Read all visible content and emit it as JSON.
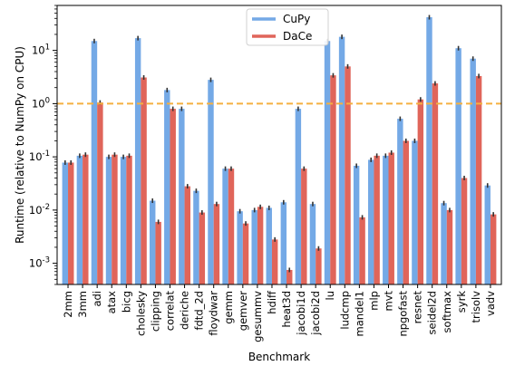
{
  "chart_data": {
    "type": "bar",
    "xlabel": "Benchmark",
    "ylabel": "Runtime (relative to NumPy on CPU)",
    "yscale": "log",
    "ylim": [
      0.0004,
      70
    ],
    "yticks": [
      0.001,
      0.01,
      0.1,
      1,
      10
    ],
    "ytick_labels": [
      {
        "base": "10",
        "exp": "-3"
      },
      {
        "base": "10",
        "exp": "-2"
      },
      {
        "base": "10",
        "exp": "-1"
      },
      {
        "base": "10",
        "exp": "0"
      },
      {
        "base": "10",
        "exp": "1"
      }
    ],
    "reference_line": {
      "y": 1,
      "color": "#f5b041",
      "style": "dashed"
    },
    "legend_position": "top-center",
    "categories": [
      "2mm",
      "3mm",
      "adi",
      "atax",
      "bicg",
      "cholesky",
      "clipping",
      "correlat",
      "deriche",
      "fdtd_2d",
      "floydwar",
      "gemm",
      "gemver",
      "gesummv",
      "hdiff",
      "heat3d",
      "jacobi1d",
      "jacobi2d",
      "lu",
      "ludcmp",
      "mandel1",
      "mlp",
      "mvt",
      "npgofast",
      "resnet",
      "seidel2d",
      "softmax",
      "syrk",
      "trisolv",
      "vadv"
    ],
    "series": [
      {
        "name": "CuPy",
        "color": "#74a9e6",
        "values": [
          0.078,
          0.105,
          15.0,
          0.1,
          0.1,
          17.0,
          0.015,
          1.8,
          0.8,
          0.023,
          2.8,
          0.06,
          0.0095,
          0.01,
          0.011,
          0.014,
          0.8,
          0.013,
          15.0,
          18.0,
          0.068,
          0.088,
          0.105,
          0.52,
          0.2,
          42.0,
          0.0135,
          11.0,
          7.0,
          0.029
        ]
      },
      {
        "name": "DaCe",
        "color": "#e0655a",
        "values": [
          0.078,
          0.11,
          1.05,
          0.11,
          0.105,
          3.1,
          0.006,
          0.8,
          0.028,
          0.009,
          0.013,
          0.06,
          0.0056,
          0.0115,
          0.0028,
          0.00075,
          0.06,
          0.0019,
          3.4,
          5.0,
          0.0073,
          0.105,
          0.12,
          0.2,
          1.2,
          2.4,
          0.01,
          0.04,
          3.3,
          0.0083
        ]
      }
    ]
  }
}
